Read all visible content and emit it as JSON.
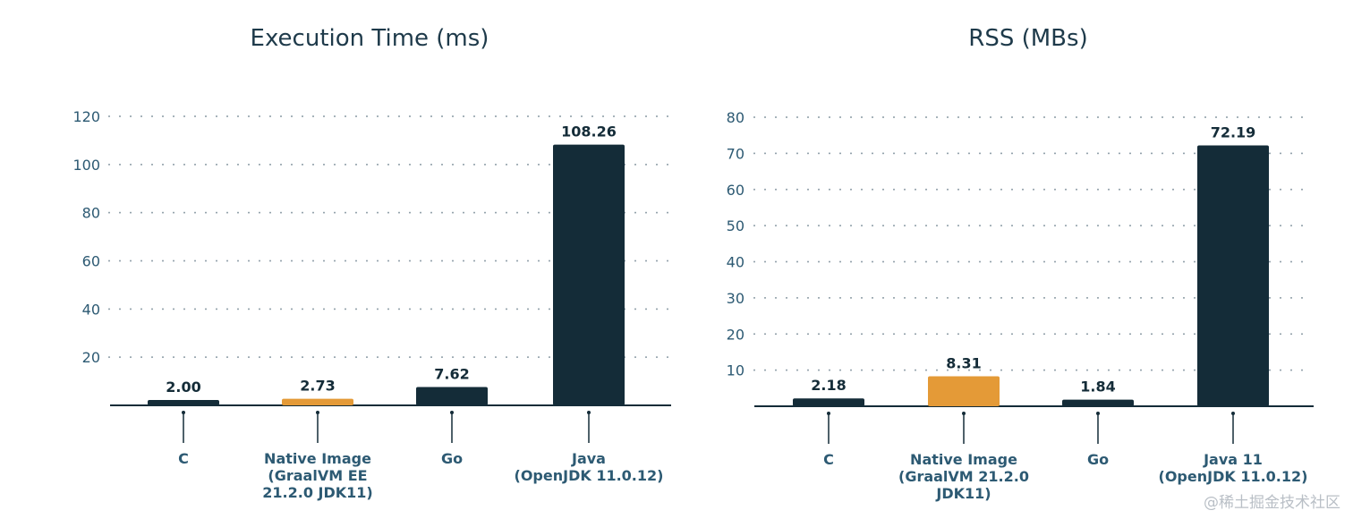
{
  "chart_data": [
    {
      "type": "bar",
      "title": "Execution Time (ms)",
      "xlabel": "",
      "ylabel": "",
      "ylim": [
        0,
        120
      ],
      "yticks": [
        20,
        40,
        60,
        80,
        100,
        120
      ],
      "grid": true,
      "categories": [
        "C",
        "Native Image\n(GraalVM EE\n21.2.0 JDK11)",
        "Go",
        "Java\n(OpenJDK 11.0.12)"
      ],
      "values": [
        2.0,
        2.73,
        7.62,
        108.26
      ],
      "value_labels": [
        "2.00",
        "2.73",
        "7.62",
        "108.26"
      ],
      "colors": [
        "#142c38",
        "#e49a37",
        "#142c38",
        "#142c38"
      ]
    },
    {
      "type": "bar",
      "title": "RSS (MBs)",
      "xlabel": "",
      "ylabel": "",
      "ylim": [
        0,
        80
      ],
      "yticks": [
        10,
        20,
        30,
        40,
        50,
        60,
        70,
        80
      ],
      "grid": true,
      "categories": [
        "C",
        "Native Image\n(GraalVM 21.2.0\nJDK11)",
        "Go",
        "Java 11\n(OpenJDK 11.0.12)"
      ],
      "values": [
        2.18,
        8.31,
        1.84,
        72.19
      ],
      "value_labels": [
        "2.18",
        "8.31",
        "1.84",
        "72.19"
      ],
      "colors": [
        "#142c38",
        "#e49a37",
        "#142c38",
        "#142c38"
      ]
    }
  ],
  "watermark": "@稀土掘金技术社区"
}
